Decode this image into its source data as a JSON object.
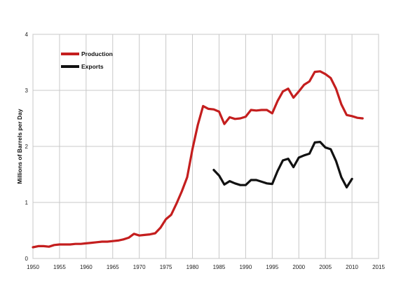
{
  "chart_data": {
    "type": "line",
    "title": "",
    "xlabel": "",
    "ylabel": "Millions of Barrels per Day",
    "xlim": [
      1950,
      2015
    ],
    "ylim": [
      0,
      4
    ],
    "x_ticks": [
      "1950",
      "1955",
      "1960",
      "1965",
      "1970",
      "1975",
      "1980",
      "1985",
      "1990",
      "1995",
      "2000",
      "2005",
      "2010",
      "2015"
    ],
    "y_ticks": [
      "0",
      "1",
      "2",
      "3",
      "4"
    ],
    "grid": true,
    "legend_position": "top-left",
    "series": [
      {
        "name": "Production",
        "color": "#c41e1e",
        "x": [
          1950,
          1951,
          1952,
          1953,
          1954,
          1955,
          1956,
          1957,
          1958,
          1959,
          1960,
          1961,
          1962,
          1963,
          1964,
          1965,
          1966,
          1967,
          1968,
          1969,
          1970,
          1971,
          1972,
          1973,
          1974,
          1975,
          1976,
          1977,
          1978,
          1979,
          1980,
          1981,
          1982,
          1983,
          1984,
          1985,
          1986,
          1987,
          1988,
          1989,
          1990,
          1991,
          1992,
          1993,
          1994,
          1995,
          1996,
          1997,
          1998,
          1999,
          2000,
          2001,
          2002,
          2003,
          2004,
          2005,
          2006,
          2007,
          2008,
          2009,
          2010,
          2011,
          2012
        ],
        "y": [
          0.2,
          0.22,
          0.22,
          0.21,
          0.24,
          0.25,
          0.25,
          0.25,
          0.26,
          0.26,
          0.27,
          0.28,
          0.29,
          0.3,
          0.3,
          0.31,
          0.32,
          0.34,
          0.37,
          0.44,
          0.41,
          0.42,
          0.43,
          0.45,
          0.55,
          0.7,
          0.78,
          0.98,
          1.2,
          1.45,
          1.95,
          2.38,
          2.72,
          2.67,
          2.66,
          2.62,
          2.4,
          2.52,
          2.49,
          2.5,
          2.53,
          2.65,
          2.64,
          2.65,
          2.65,
          2.59,
          2.81,
          2.98,
          3.03,
          2.87,
          2.98,
          3.1,
          3.16,
          3.33,
          3.34,
          3.29,
          3.22,
          3.03,
          2.75,
          2.56,
          2.54,
          2.51,
          2.5
        ]
      },
      {
        "name": "Exports",
        "color": "#111111",
        "x": [
          1984,
          1985,
          1986,
          1987,
          1988,
          1989,
          1990,
          1991,
          1992,
          1993,
          1994,
          1995,
          1996,
          1997,
          1998,
          1999,
          2000,
          2001,
          2002,
          2003,
          2004,
          2005,
          2006,
          2007,
          2008,
          2009,
          2010
        ],
        "y": [
          1.58,
          1.48,
          1.32,
          1.38,
          1.34,
          1.31,
          1.31,
          1.4,
          1.4,
          1.37,
          1.34,
          1.33,
          1.56,
          1.75,
          1.78,
          1.63,
          1.8,
          1.84,
          1.87,
          2.07,
          2.08,
          1.98,
          1.95,
          1.74,
          1.45,
          1.27,
          1.42
        ]
      }
    ]
  }
}
